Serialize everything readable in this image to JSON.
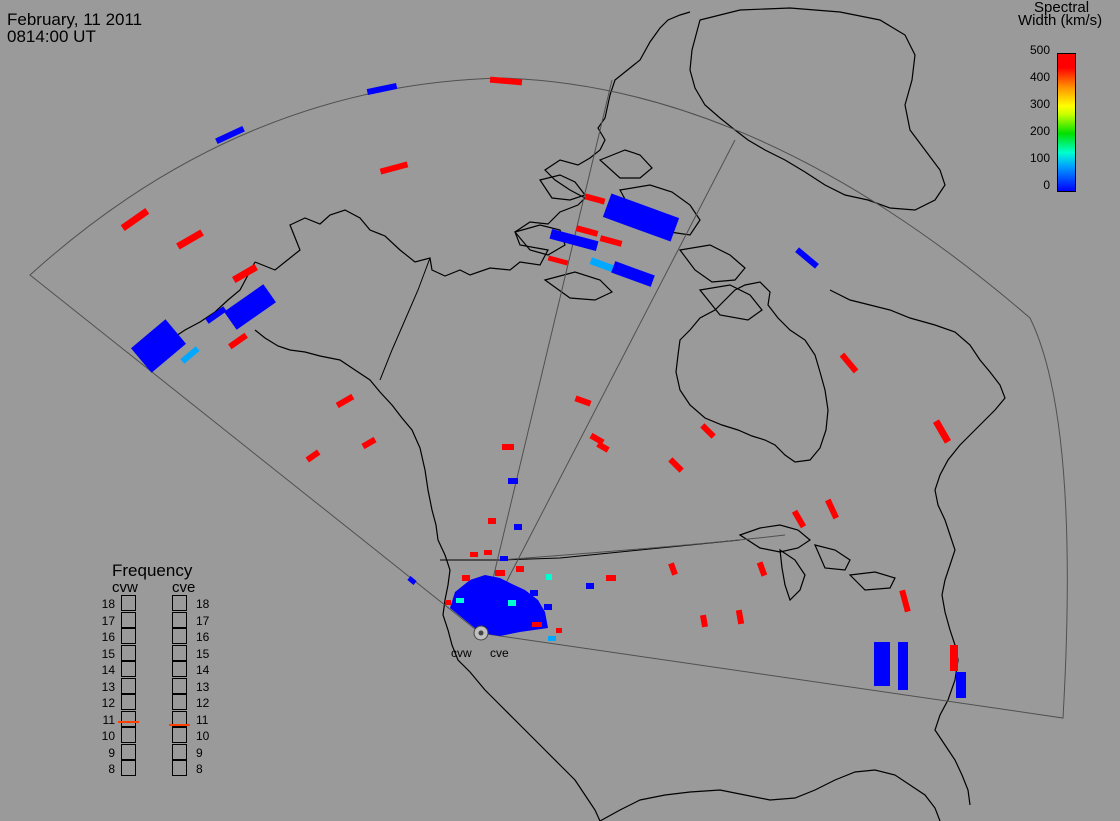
{
  "header": {
    "date": "February, 11 2011",
    "time": "0814:00 UT"
  },
  "colorbar": {
    "title_line1": "Spectral",
    "title_line2": "Width (km/s)",
    "ticks": [
      "500",
      "400",
      "300",
      "200",
      "100",
      "0"
    ],
    "colors": [
      "#0000ff",
      "#00a0ff",
      "#00ffd0",
      "#00e000",
      "#ffff00",
      "#ff9000",
      "#ff0000"
    ]
  },
  "frequency": {
    "title": "Frequency",
    "left_label": "cvw",
    "right_label": "cve",
    "ticks": [
      "18",
      "17",
      "16",
      "15",
      "14",
      "13",
      "12",
      "11",
      "10",
      "9",
      "8"
    ],
    "cvw_mhz": 10.8,
    "cve_mhz": 10.6,
    "marker_color": "#ff4000"
  },
  "stations": {
    "left": "cvw",
    "right": "cve"
  },
  "colors": {
    "background": "#9a9a9a",
    "outline": "#000000",
    "fov": "#505050",
    "high_width": "#ff0000",
    "low_width": "#0000ff"
  }
}
